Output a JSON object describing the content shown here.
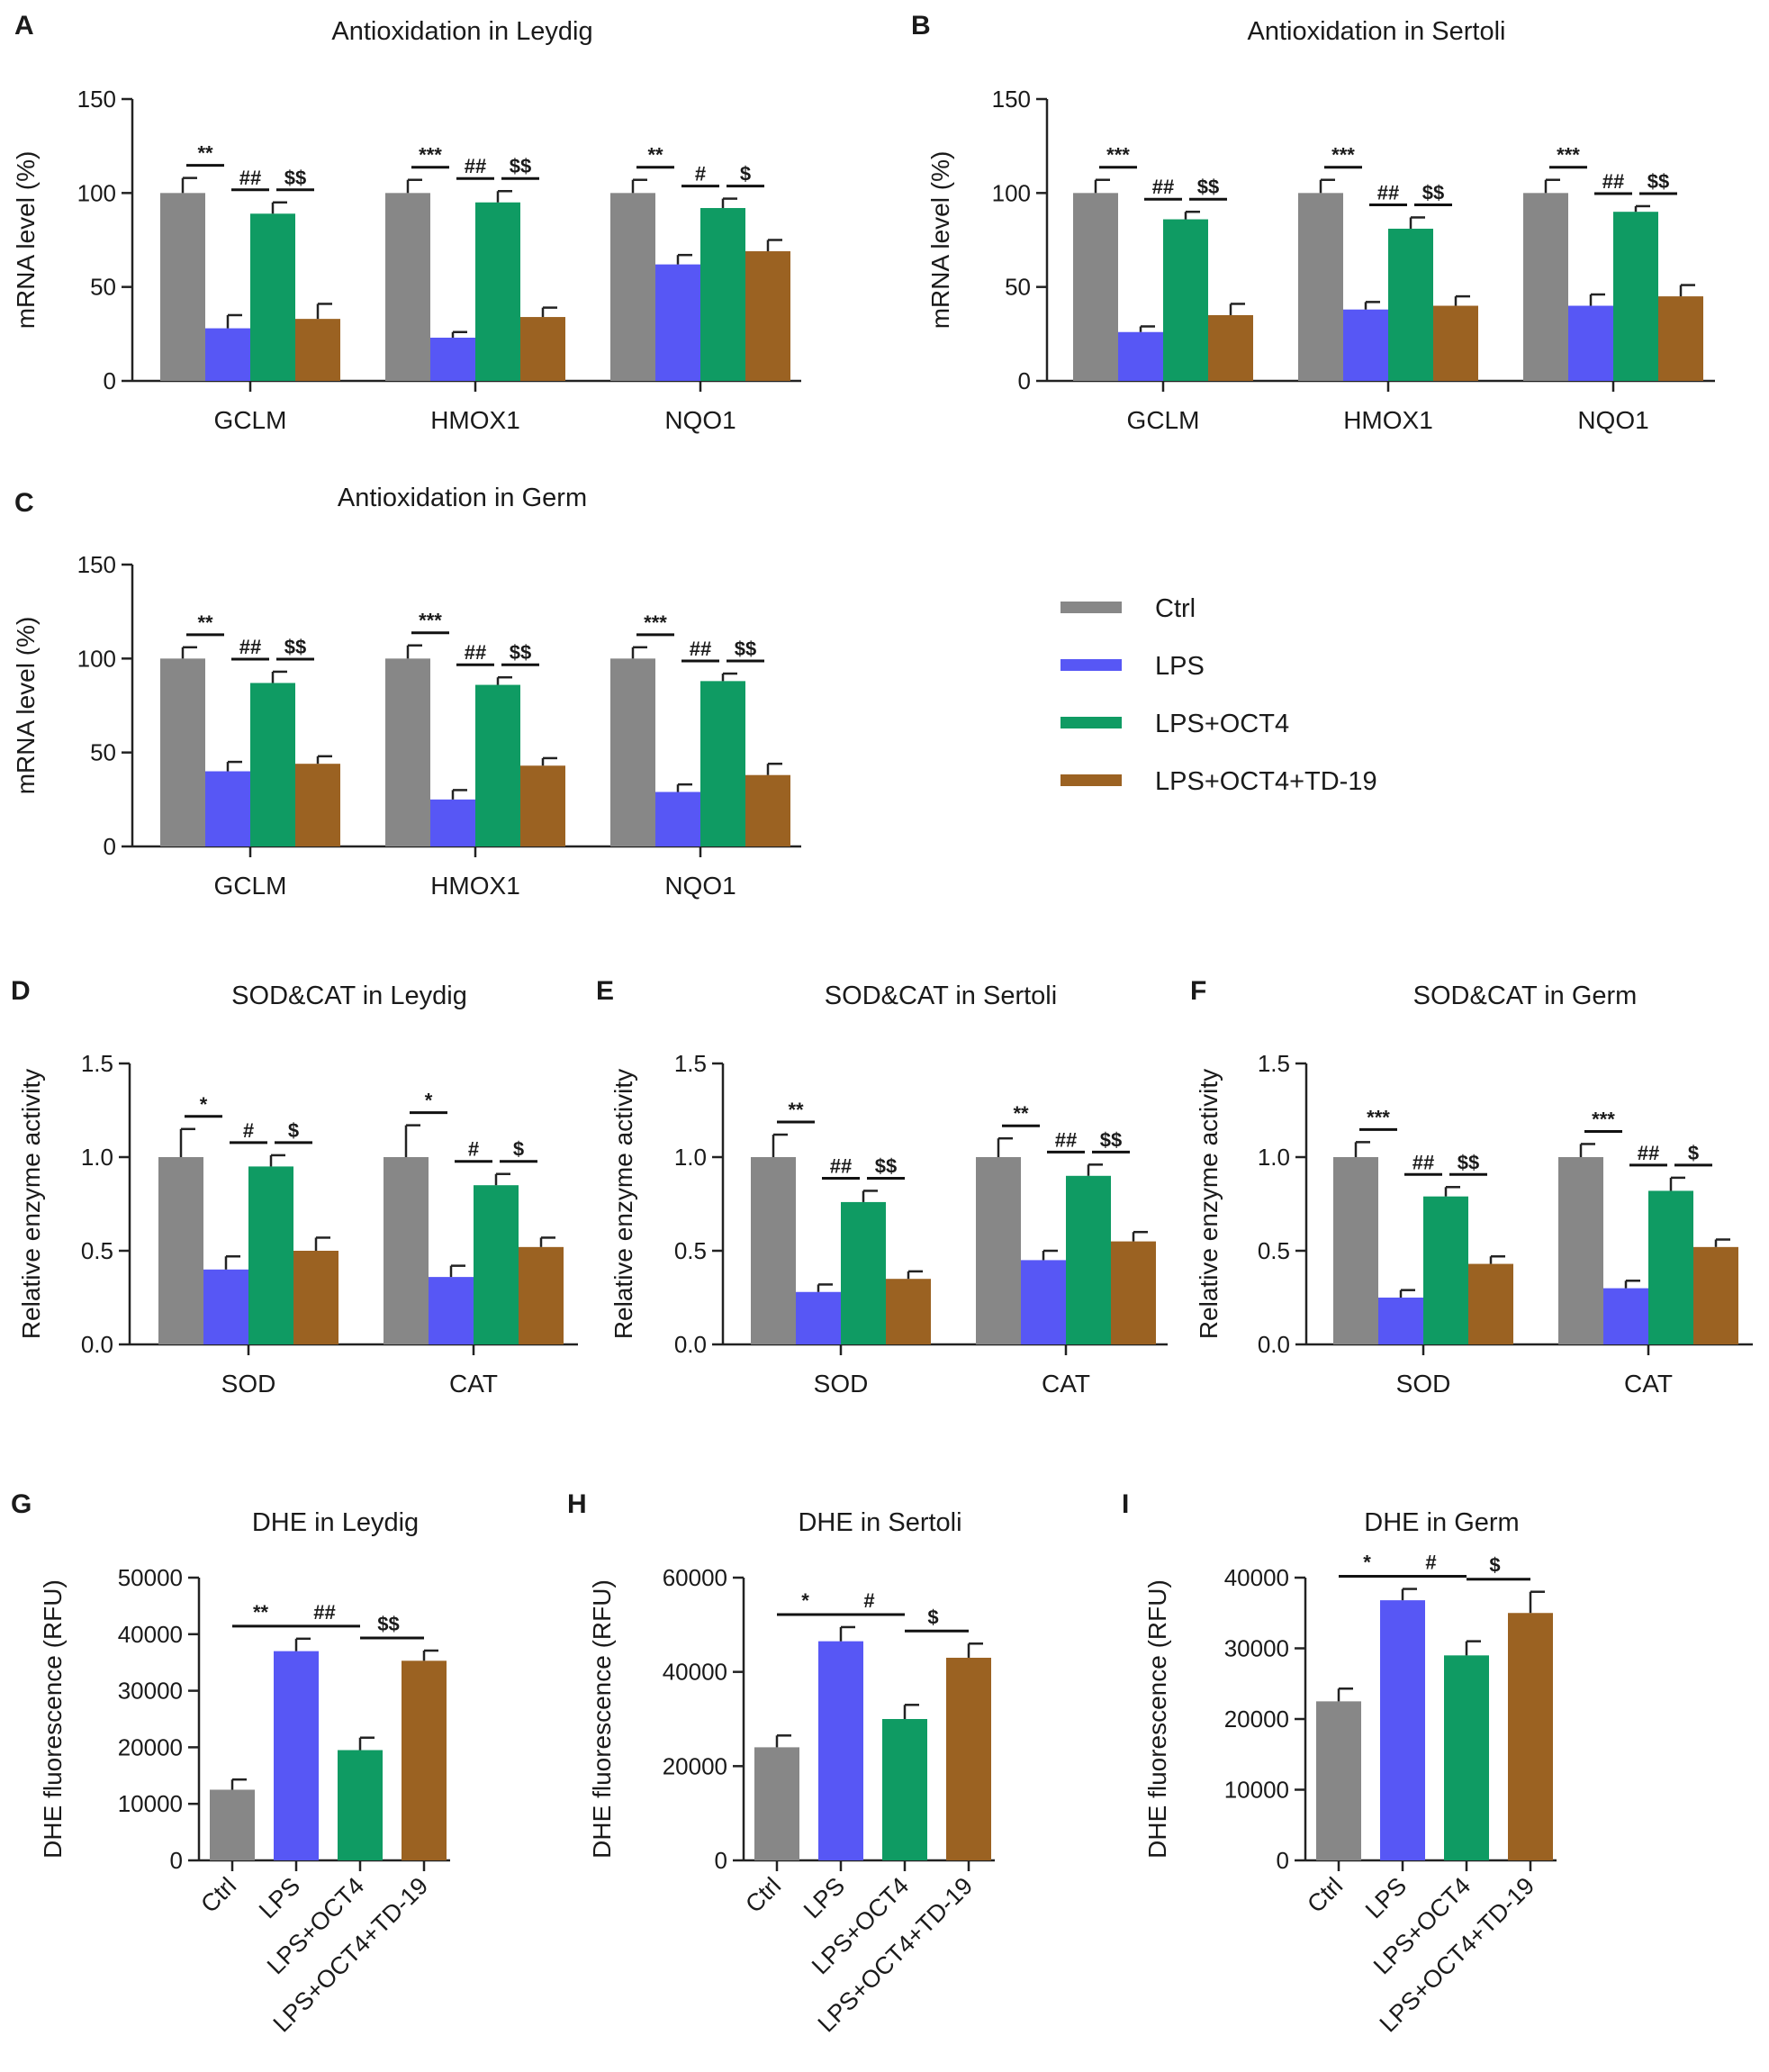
{
  "colors": {
    "ctrl": "#878787",
    "lps": "#5757f5",
    "oct4": "#0f9b63",
    "td19": "#9b6222"
  },
  "legend": [
    {
      "key": "ctrl",
      "label": "Ctrl"
    },
    {
      "key": "lps",
      "label": "LPS"
    },
    {
      "key": "oct4",
      "label": "LPS+OCT4"
    },
    {
      "key": "td19",
      "label": "LPS+OCT4+TD-19"
    }
  ],
  "chart_data": [
    {
      "id": "A",
      "letter": "A",
      "type": "bar",
      "title": "Antioxidation in Leydig",
      "ylabel": "mRNA level (%)",
      "ylim": [
        0,
        150
      ],
      "yticks": [
        "0",
        "50",
        "100",
        "150"
      ],
      "tickvals": [
        0,
        50,
        100,
        150
      ],
      "categories": [
        "GCLM",
        "HMOX1",
        "NQO1"
      ],
      "series": [
        {
          "name": "Ctrl",
          "key": "ctrl",
          "values": [
            100,
            100,
            100
          ],
          "errors": [
            8,
            7,
            7
          ]
        },
        {
          "name": "LPS",
          "key": "lps",
          "values": [
            28,
            23,
            62
          ],
          "errors": [
            7,
            3,
            5
          ]
        },
        {
          "name": "LPS+OCT4",
          "key": "oct4",
          "values": [
            89,
            95,
            92
          ],
          "errors": [
            6,
            6,
            5
          ]
        },
        {
          "name": "LPS+OCT4+TD-19",
          "key": "td19",
          "values": [
            33,
            34,
            69
          ],
          "errors": [
            8,
            5,
            6
          ]
        }
      ],
      "sig": [
        [
          "**",
          "##",
          "$$"
        ],
        [
          "***",
          "##",
          "$$"
        ],
        [
          "**",
          "#",
          "$"
        ]
      ]
    },
    {
      "id": "B",
      "letter": "B",
      "type": "bar",
      "title": "Antioxidation in Sertoli",
      "ylabel": "mRNA level (%)",
      "ylim": [
        0,
        150
      ],
      "yticks": [
        "0",
        "50",
        "100",
        "150"
      ],
      "tickvals": [
        0,
        50,
        100,
        150
      ],
      "categories": [
        "GCLM",
        "HMOX1",
        "NQO1"
      ],
      "series": [
        {
          "name": "Ctrl",
          "key": "ctrl",
          "values": [
            100,
            100,
            100
          ],
          "errors": [
            7,
            7,
            7
          ]
        },
        {
          "name": "LPS",
          "key": "lps",
          "values": [
            26,
            38,
            40
          ],
          "errors": [
            3,
            4,
            6
          ]
        },
        {
          "name": "LPS+OCT4",
          "key": "oct4",
          "values": [
            86,
            81,
            90
          ],
          "errors": [
            4,
            6,
            3
          ]
        },
        {
          "name": "LPS+OCT4+TD-19",
          "key": "td19",
          "values": [
            35,
            40,
            45
          ],
          "errors": [
            6,
            5,
            6
          ]
        }
      ],
      "sig": [
        [
          "***",
          "##",
          "$$"
        ],
        [
          "***",
          "##",
          "$$"
        ],
        [
          "***",
          "##",
          "$$"
        ]
      ]
    },
    {
      "id": "C",
      "letter": "C",
      "type": "bar",
      "title": "Antioxidation in Germ",
      "ylabel": "mRNA level (%)",
      "ylim": [
        0,
        150
      ],
      "yticks": [
        "0",
        "50",
        "100",
        "150"
      ],
      "tickvals": [
        0,
        50,
        100,
        150
      ],
      "categories": [
        "GCLM",
        "HMOX1",
        "NQO1"
      ],
      "series": [
        {
          "name": "Ctrl",
          "key": "ctrl",
          "values": [
            100,
            100,
            100
          ],
          "errors": [
            6,
            7,
            6
          ]
        },
        {
          "name": "LPS",
          "key": "lps",
          "values": [
            40,
            25,
            29
          ],
          "errors": [
            5,
            5,
            4
          ]
        },
        {
          "name": "LPS+OCT4",
          "key": "oct4",
          "values": [
            87,
            86,
            88
          ],
          "errors": [
            6,
            4,
            4
          ]
        },
        {
          "name": "LPS+OCT4+TD-19",
          "key": "td19",
          "values": [
            44,
            43,
            38
          ],
          "errors": [
            4,
            4,
            6
          ]
        }
      ],
      "sig": [
        [
          "**",
          "##",
          "$$"
        ],
        [
          "***",
          "##",
          "$$"
        ],
        [
          "***",
          "##",
          "$$"
        ]
      ]
    },
    {
      "id": "D",
      "letter": "D",
      "type": "bar",
      "title": "SOD&CAT in Leydig",
      "ylabel": "Relative enzyme activity",
      "ylim": [
        0,
        1.5
      ],
      "yticks": [
        "0.0",
        "0.5",
        "1.0",
        "1.5"
      ],
      "tickvals": [
        0,
        0.5,
        1.0,
        1.5
      ],
      "categories": [
        "SOD",
        "CAT"
      ],
      "series": [
        {
          "name": "Ctrl",
          "key": "ctrl",
          "values": [
            1.0,
            1.0
          ],
          "errors": [
            0.15,
            0.17
          ]
        },
        {
          "name": "LPS",
          "key": "lps",
          "values": [
            0.4,
            0.36
          ],
          "errors": [
            0.07,
            0.06
          ]
        },
        {
          "name": "LPS+OCT4",
          "key": "oct4",
          "values": [
            0.95,
            0.85
          ],
          "errors": [
            0.06,
            0.06
          ]
        },
        {
          "name": "LPS+OCT4+TD-19",
          "key": "td19",
          "values": [
            0.5,
            0.52
          ],
          "errors": [
            0.07,
            0.05
          ]
        }
      ],
      "sig": [
        [
          "*",
          "#",
          "$"
        ],
        [
          "*",
          "#",
          "$"
        ]
      ]
    },
    {
      "id": "E",
      "letter": "E",
      "type": "bar",
      "title": "SOD&CAT in Sertoli",
      "ylabel": "Relative enzyme activity",
      "ylim": [
        0,
        1.5
      ],
      "yticks": [
        "0.0",
        "0.5",
        "1.0",
        "1.5"
      ],
      "tickvals": [
        0,
        0.5,
        1.0,
        1.5
      ],
      "categories": [
        "SOD",
        "CAT"
      ],
      "series": [
        {
          "name": "Ctrl",
          "key": "ctrl",
          "values": [
            1.0,
            1.0
          ],
          "errors": [
            0.12,
            0.1
          ]
        },
        {
          "name": "LPS",
          "key": "lps",
          "values": [
            0.28,
            0.45
          ],
          "errors": [
            0.04,
            0.05
          ]
        },
        {
          "name": "LPS+OCT4",
          "key": "oct4",
          "values": [
            0.76,
            0.9
          ],
          "errors": [
            0.06,
            0.06
          ]
        },
        {
          "name": "LPS+OCT4+TD-19",
          "key": "td19",
          "values": [
            0.35,
            0.55
          ],
          "errors": [
            0.04,
            0.05
          ]
        }
      ],
      "sig": [
        [
          "**",
          "##",
          "$$"
        ],
        [
          "**",
          "##",
          "$$"
        ]
      ]
    },
    {
      "id": "F",
      "letter": "F",
      "type": "bar",
      "title": "SOD&CAT in Germ",
      "ylabel": "Relative enzyme activity",
      "ylim": [
        0,
        1.5
      ],
      "yticks": [
        "0.0",
        "0.5",
        "1.0",
        "1.5"
      ],
      "tickvals": [
        0,
        0.5,
        1.0,
        1.5
      ],
      "categories": [
        "SOD",
        "CAT"
      ],
      "series": [
        {
          "name": "Ctrl",
          "key": "ctrl",
          "values": [
            1.0,
            1.0
          ],
          "errors": [
            0.08,
            0.07
          ]
        },
        {
          "name": "LPS",
          "key": "lps",
          "values": [
            0.25,
            0.3
          ],
          "errors": [
            0.04,
            0.04
          ]
        },
        {
          "name": "LPS+OCT4",
          "key": "oct4",
          "values": [
            0.79,
            0.82
          ],
          "errors": [
            0.05,
            0.07
          ]
        },
        {
          "name": "LPS+OCT4+TD-19",
          "key": "td19",
          "values": [
            0.43,
            0.52
          ],
          "errors": [
            0.04,
            0.04
          ]
        }
      ],
      "sig": [
        [
          "***",
          "##",
          "$$"
        ],
        [
          "***",
          "##",
          "$"
        ]
      ]
    },
    {
      "id": "G",
      "letter": "G",
      "type": "bar",
      "title": "DHE in Leydig",
      "ylabel": "DHE fluorescence (RFU)",
      "ylim": [
        0,
        50000
      ],
      "yticks": [
        "0",
        "10000",
        "20000",
        "30000",
        "40000",
        "50000"
      ],
      "tickvals": [
        0,
        10000,
        20000,
        30000,
        40000,
        50000
      ],
      "categories": [
        "Ctrl",
        "LPS",
        "LPS+OCT4",
        "LPS+OCT4+TD-19"
      ],
      "values": [
        12500,
        37000,
        19500,
        35300
      ],
      "errors": [
        1800,
        2200,
        2200,
        1800
      ],
      "sig": [
        "**",
        "##",
        "$$"
      ]
    },
    {
      "id": "H",
      "letter": "H",
      "type": "bar",
      "title": "DHE in Sertoli",
      "ylabel": "DHE fluorescence (RFU)",
      "ylim": [
        0,
        60000
      ],
      "yticks": [
        "0",
        "20000",
        "40000",
        "60000"
      ],
      "tickvals": [
        0,
        20000,
        40000,
        60000
      ],
      "categories": [
        "Ctrl",
        "LPS",
        "LPS+OCT4",
        "LPS+OCT4+TD-19"
      ],
      "values": [
        24000,
        46500,
        30000,
        43000
      ],
      "errors": [
        2500,
        3000,
        3000,
        3000
      ],
      "sig": [
        "*",
        "#",
        "$"
      ]
    },
    {
      "id": "I",
      "letter": "I",
      "type": "bar",
      "title": "DHE in Germ",
      "ylabel": "DHE fluorescence (RFU)",
      "ylim": [
        0,
        40000
      ],
      "yticks": [
        "0",
        "10000",
        "20000",
        "30000",
        "40000"
      ],
      "tickvals": [
        0,
        10000,
        20000,
        30000,
        40000
      ],
      "categories": [
        "Ctrl",
        "LPS",
        "LPS+OCT4",
        "LPS+OCT4+TD-19"
      ],
      "values": [
        22500,
        36800,
        29000,
        35000
      ],
      "errors": [
        1800,
        1600,
        2000,
        3000
      ],
      "sig": [
        "*",
        "#",
        "$"
      ]
    }
  ]
}
